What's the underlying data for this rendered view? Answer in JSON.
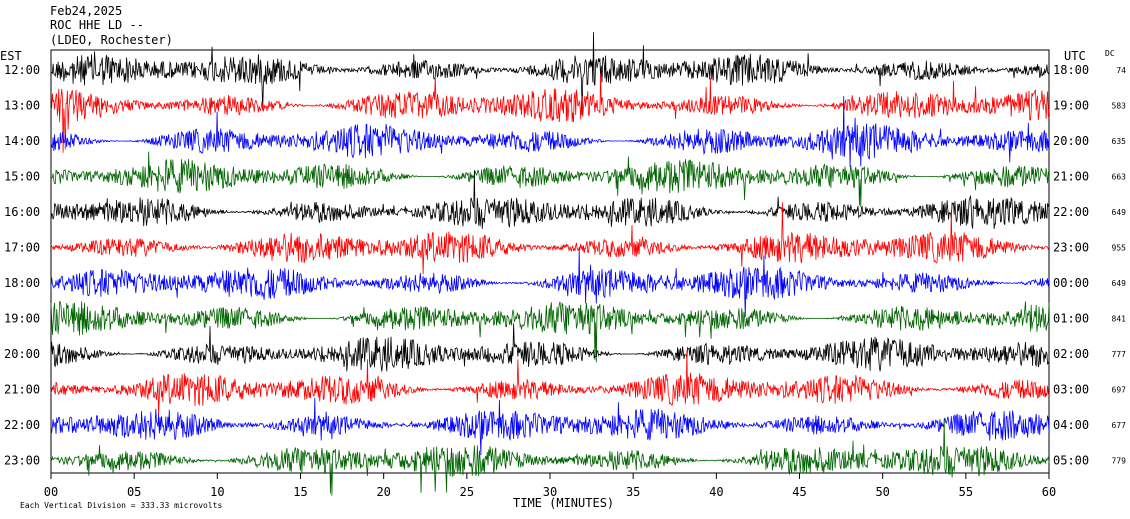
{
  "header": {
    "date": "Feb24,2025",
    "station": "ROC HHE LD --",
    "network": "(LDEO, Rochester)"
  },
  "chart_data": {
    "type": "line",
    "title": "ROC HHE LD --",
    "xlabel": "TIME (MINUTES)",
    "x_ticks": [
      "00",
      "05",
      "10",
      "15",
      "20",
      "25",
      "30",
      "35",
      "40",
      "45",
      "50",
      "55",
      "60"
    ],
    "xlim": [
      0,
      60
    ],
    "left_axis_title": "EST",
    "right_axis_title": "UTC",
    "dc_title": "DC",
    "rows": [
      {
        "est": "12:00",
        "utc": "18:00",
        "dc": "74",
        "color": "#000000"
      },
      {
        "est": "13:00",
        "utc": "19:00",
        "dc": "583",
        "color": "#ff0000"
      },
      {
        "est": "14:00",
        "utc": "20:00",
        "dc": "635",
        "color": "#0000ff"
      },
      {
        "est": "15:00",
        "utc": "21:00",
        "dc": "663",
        "color": "#006400"
      },
      {
        "est": "16:00",
        "utc": "22:00",
        "dc": "649",
        "color": "#000000"
      },
      {
        "est": "17:00",
        "utc": "23:00",
        "dc": "955",
        "color": "#ff0000"
      },
      {
        "est": "18:00",
        "utc": "00:00",
        "dc": "649",
        "color": "#0000ff"
      },
      {
        "est": "19:00",
        "utc": "01:00",
        "dc": "841",
        "color": "#006400"
      },
      {
        "est": "20:00",
        "utc": "02:00",
        "dc": "777",
        "color": "#000000"
      },
      {
        "est": "21:00",
        "utc": "03:00",
        "dc": "697",
        "color": "#ff0000"
      },
      {
        "est": "22:00",
        "utc": "04:00",
        "dc": "677",
        "color": "#0000ff"
      },
      {
        "est": "23:00",
        "utc": "05:00",
        "dc": "779",
        "color": "#006400"
      }
    ],
    "footer_note": "Each Vertical Division = 333.33 microvolts",
    "grid": false
  }
}
